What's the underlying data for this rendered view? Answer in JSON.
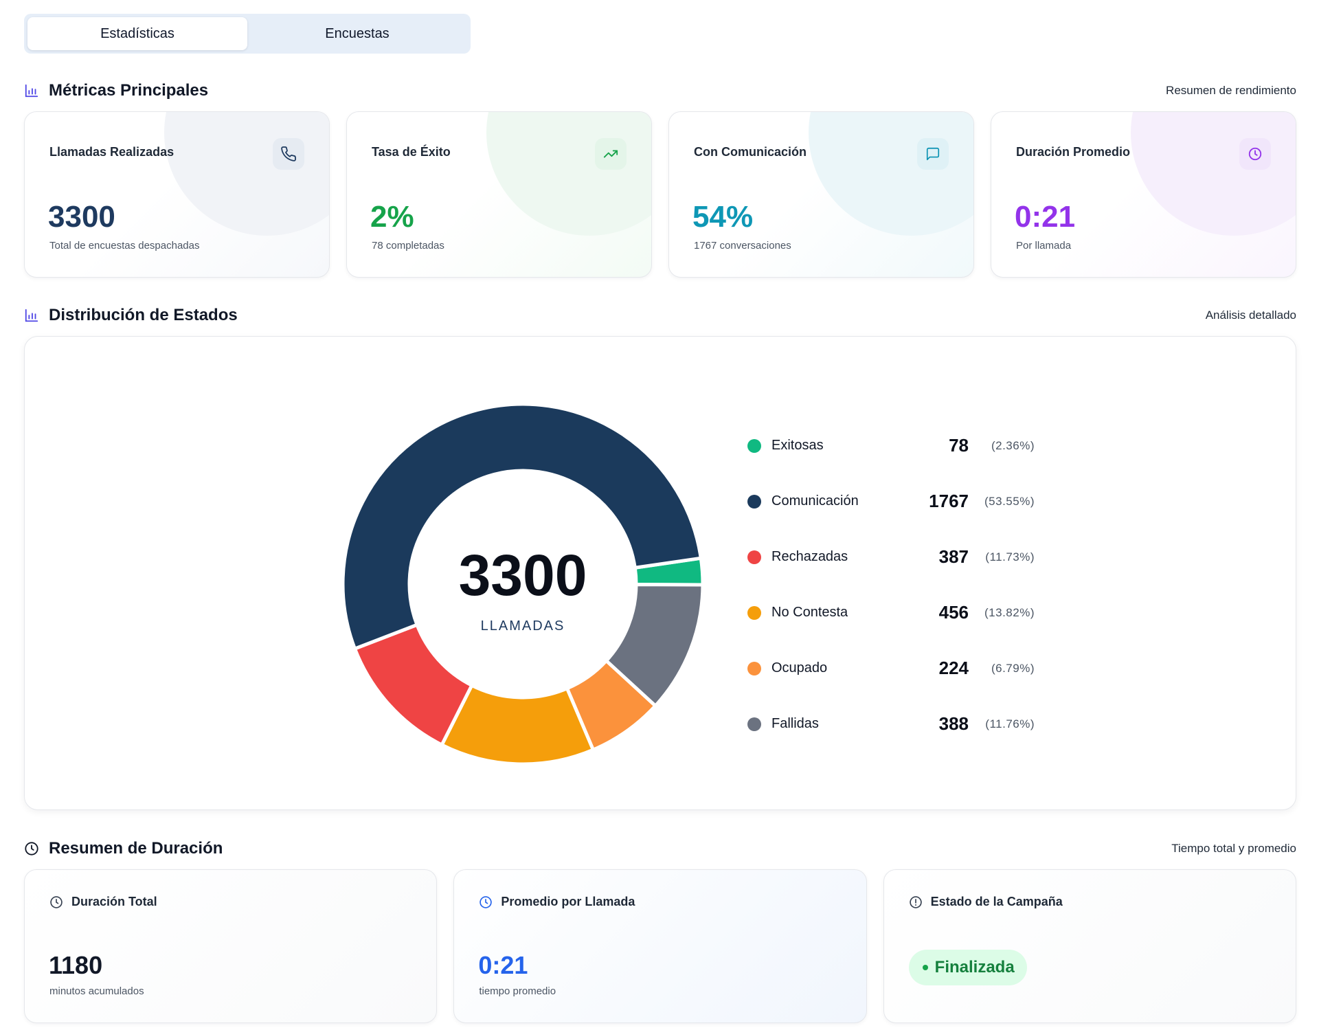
{
  "tabs": [
    {
      "label": "Estadísticas",
      "active": true
    },
    {
      "label": "Encuestas",
      "active": false
    }
  ],
  "metrics_section": {
    "title": "Métricas Principales",
    "subtitle": "Resumen de rendimiento"
  },
  "metrics": [
    {
      "label": "Llamadas Realizadas",
      "value": "3300",
      "desc": "Total de encuestas despachadas",
      "icon": "phone-icon",
      "color": "#1e3a5f",
      "icon_bg": "#e8edf3"
    },
    {
      "label": "Tasa de Éxito",
      "value": "2%",
      "desc": "78 completadas",
      "icon": "trending-up-icon",
      "color": "#16a34a",
      "icon_bg": "#e7f6ec"
    },
    {
      "label": "Con Comunicación",
      "value": "54%",
      "desc": "1767 conversaciones",
      "icon": "message-icon",
      "color": "#0891b2",
      "icon_bg": "#e2f3f7"
    },
    {
      "label": "Duración Promedio",
      "value": "0:21",
      "desc": "Por llamada",
      "icon": "clock-icon",
      "color": "#9333ea",
      "icon_bg": "#f3e8fc"
    }
  ],
  "distribution_section": {
    "title": "Distribución de Estados",
    "subtitle": "Análisis detallado"
  },
  "donut": {
    "total": "3300",
    "label": "LLAMADAS"
  },
  "chart_data": {
    "type": "pie",
    "categories": [
      "Exitosas",
      "Comunicación",
      "Rechazadas",
      "No Contesta",
      "Ocupado",
      "Fallidas"
    ],
    "values": [
      78,
      1767,
      387,
      456,
      224,
      388
    ],
    "percentages": [
      "(2.36%)",
      "(53.55%)",
      "(11.73%)",
      "(13.82%)",
      "(6.79%)",
      "(11.76%)"
    ],
    "colors": [
      "#10b981",
      "#1b3a5c",
      "#ef4444",
      "#f59e0b",
      "#fb923c",
      "#6b7280"
    ],
    "legend_position": "right"
  },
  "duration_section": {
    "title": "Resumen de Duración",
    "subtitle": "Tiempo total y promedio"
  },
  "duration": [
    {
      "label": "Duración Total",
      "value": "1180",
      "desc": "minutos acumulados",
      "icon": "clock-icon",
      "color": "#111827"
    },
    {
      "label": "Promedio por Llamada",
      "value": "0:21",
      "desc": "tiempo promedio",
      "icon": "clock-icon",
      "color": "#2563eb"
    },
    {
      "label": "Estado de la Campaña",
      "badge": "Finalizada",
      "icon": "alert-circle-icon",
      "color": "#15803d"
    }
  ]
}
